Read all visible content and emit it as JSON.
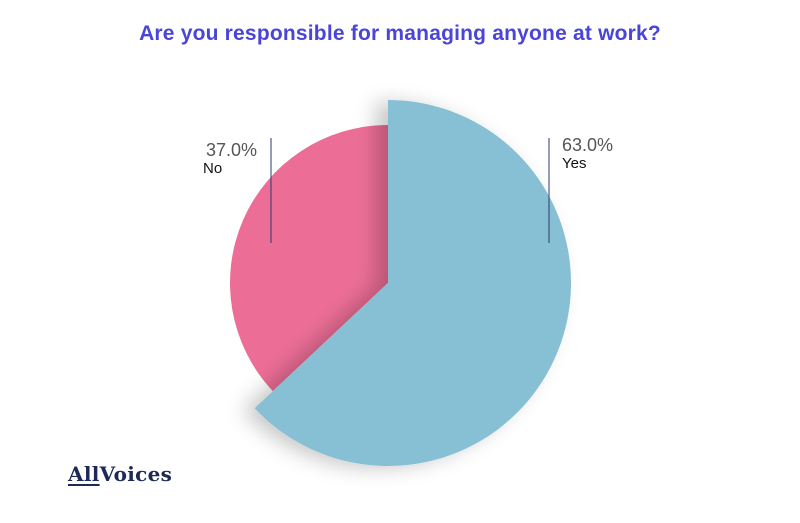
{
  "chart_data": {
    "type": "pie",
    "title": "Are you responsible for managing anyone at work?",
    "slices": [
      {
        "label": "Yes",
        "value": 63.0,
        "display": "63.0%",
        "color": "#87bfd4"
      },
      {
        "label": "No",
        "value": 37.0,
        "display": "37.0%",
        "color": "#ec6e96"
      }
    ]
  },
  "branding": {
    "logo_part1": "All",
    "logo_part2": "Voices"
  },
  "colors": {
    "title": "#4a45d8",
    "logo": "#1c2a55",
    "leader_line": "#2b3a6b"
  }
}
